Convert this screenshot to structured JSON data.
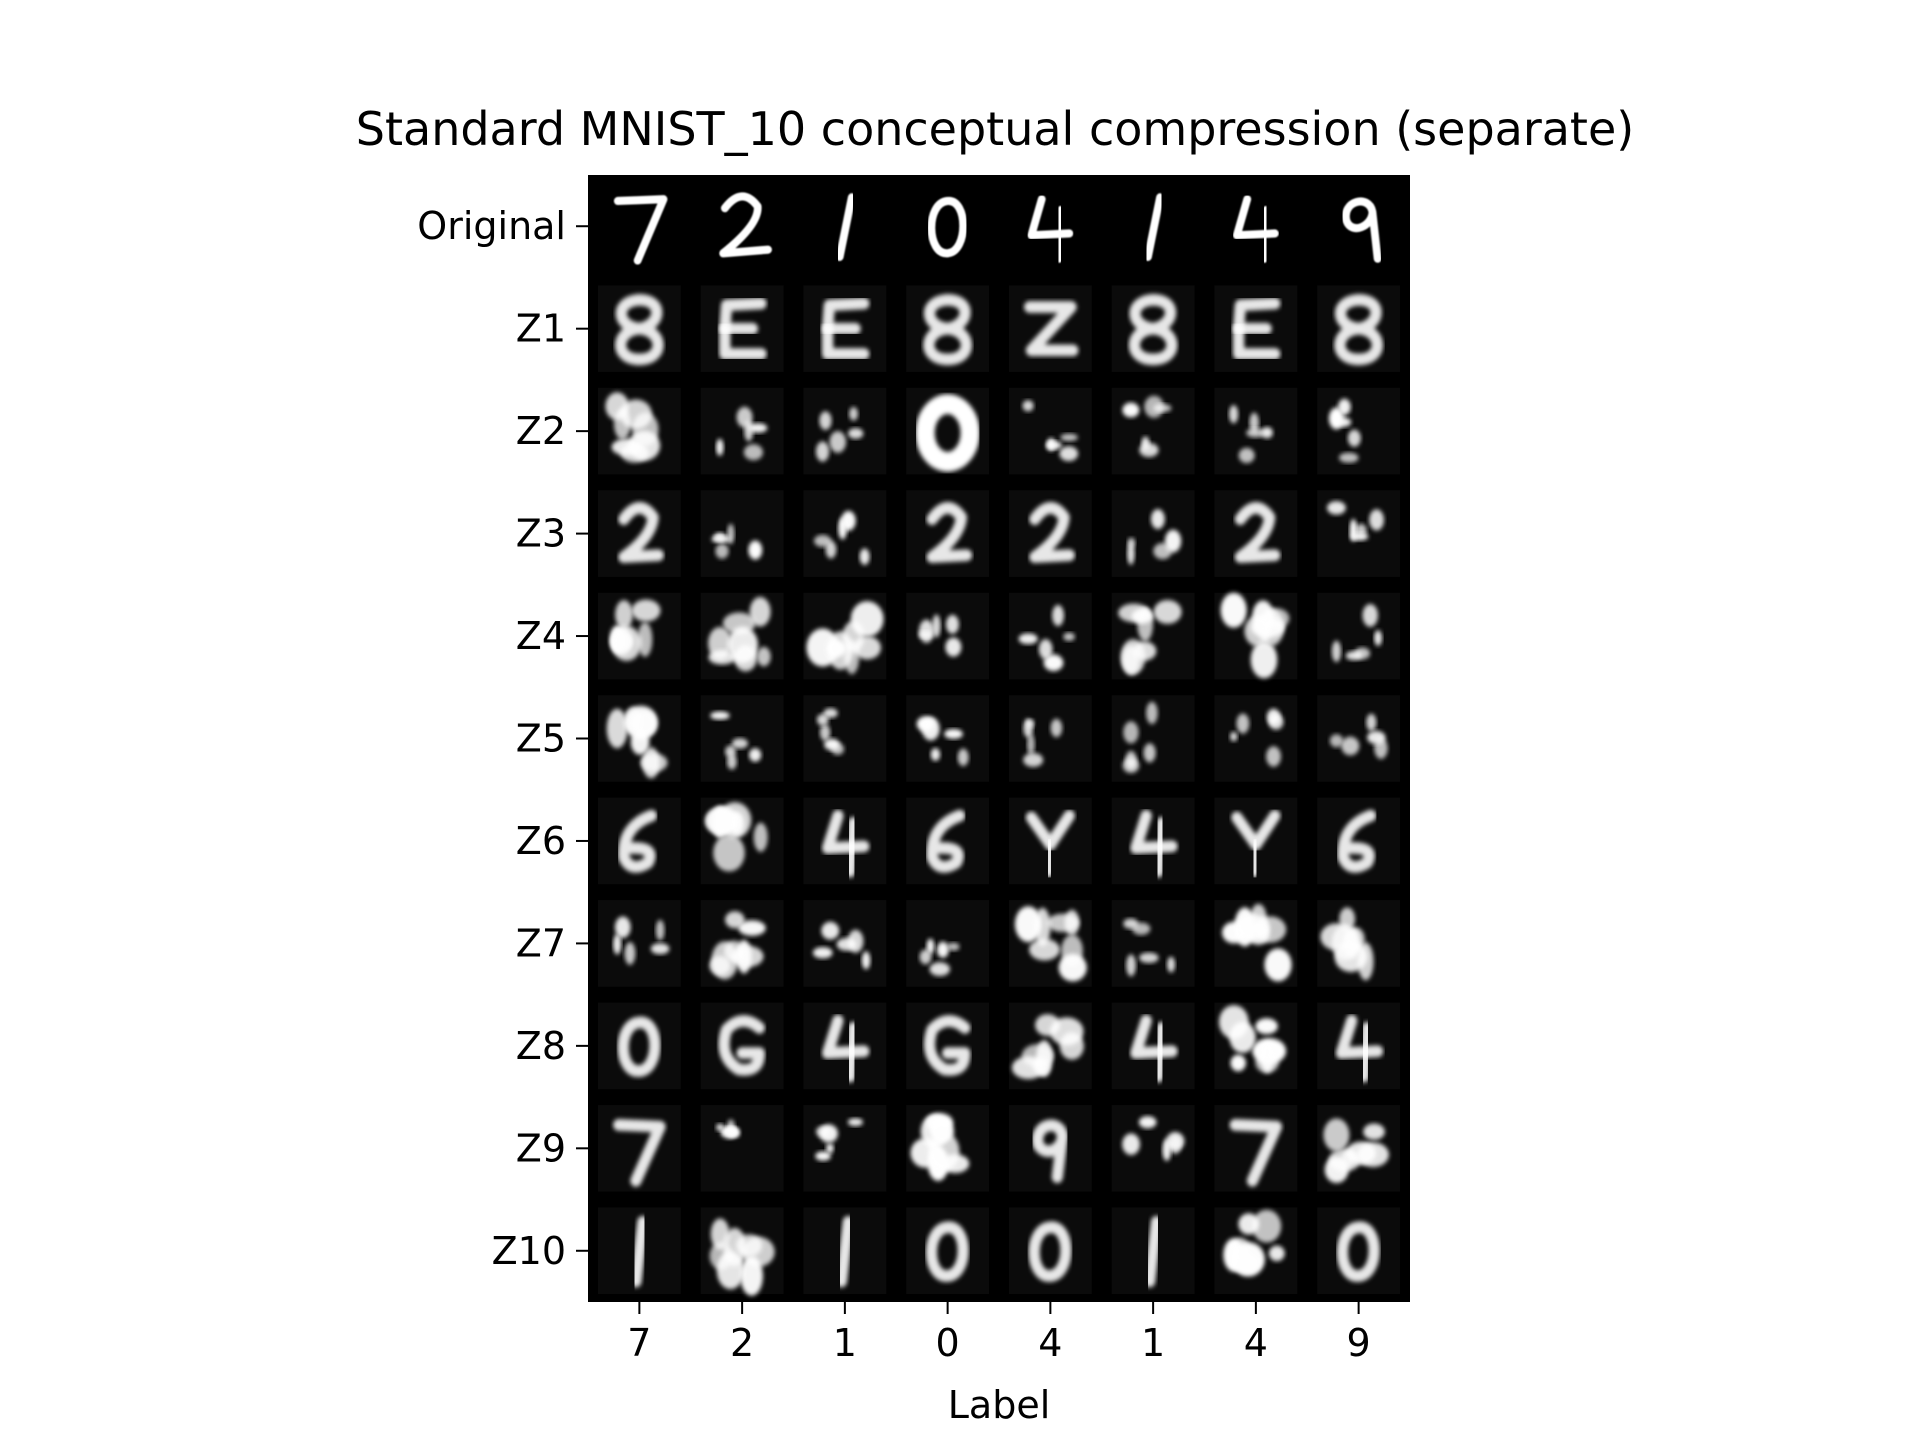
{
  "chart_data": {
    "type": "image-grid",
    "title": "Standard MNIST_10 conceptual compression (separate)",
    "xlabel": "Label",
    "ylabel": "",
    "x_tick_labels": [
      "7",
      "2",
      "1",
      "0",
      "4",
      "1",
      "4",
      "9"
    ],
    "y_tick_labels": [
      "Original",
      "Z1",
      "Z2",
      "Z3",
      "Z4",
      "Z5",
      "Z6",
      "Z7",
      "Z8",
      "Z9",
      "Z10"
    ],
    "grid": false,
    "background_color": "#000000",
    "ink_color": "#ffffff",
    "cells": [
      [
        "digit-7",
        "digit-2",
        "digit-1",
        "digit-0",
        "digit-4",
        "digit-1",
        "digit-4",
        "digit-9"
      ],
      [
        "blurry-8",
        "blurry-E",
        "blurry-E",
        "blurry-8",
        "blurry-Z",
        "blurry-8",
        "blurry-E",
        "blurry-8"
      ],
      [
        "blob",
        "fragment",
        "fragment",
        "blob-0",
        "fragment",
        "fragment",
        "fragment",
        "fragment"
      ],
      [
        "blurry-2",
        "fragment",
        "fragment",
        "blurry-2",
        "blurry-2",
        "fragment",
        "blurry-2",
        "fragment"
      ],
      [
        "blob",
        "blob",
        "blob",
        "fragment",
        "fragment",
        "blob",
        "blob",
        "fragment"
      ],
      [
        "blob",
        "fragment",
        "fragment",
        "fragment",
        "fragment",
        "fragment",
        "fragment",
        "fragment"
      ],
      [
        "blurry-6",
        "blob",
        "blurry-4",
        "blurry-6",
        "blurry-Y",
        "blurry-4",
        "blurry-Y",
        "blurry-6"
      ],
      [
        "fragment",
        "blob",
        "fragment",
        "fragment",
        "blob",
        "fragment",
        "blob",
        "blob"
      ],
      [
        "blurry-0",
        "blurry-G",
        "blurry-4",
        "blurry-G",
        "blob",
        "blurry-4",
        "blob",
        "blurry-4"
      ],
      [
        "blurry-7",
        "fragment",
        "fragment",
        "blob",
        "blurry-9",
        "fragment",
        "blurry-7",
        "blob"
      ],
      [
        "blurry-1",
        "blob",
        "blurry-1",
        "blurry-0",
        "blurry-0",
        "blurry-1",
        "blob",
        "blurry-0"
      ]
    ]
  }
}
